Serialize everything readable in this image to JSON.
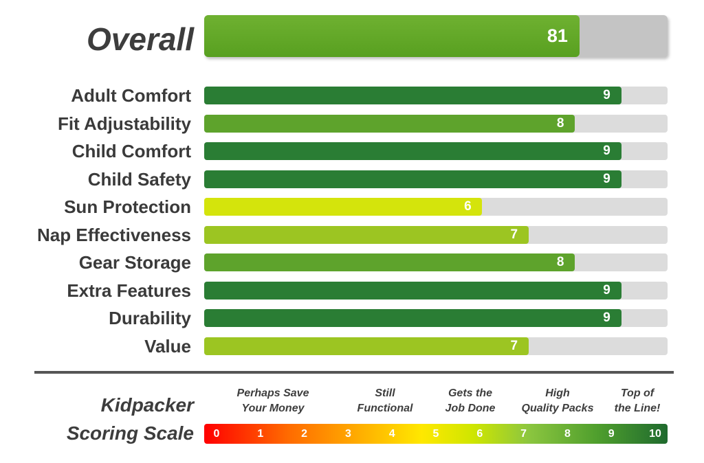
{
  "overall": {
    "label": "Overall",
    "value": 81,
    "max": 100
  },
  "chart_data": {
    "type": "bar",
    "orientation": "horizontal",
    "categories": [
      "Adult Comfort",
      "Fit Adjustability",
      "Child Comfort",
      "Child Safety",
      "Sun Protection",
      "Nap Effectiveness",
      "Gear Storage",
      "Extra Features",
      "Durability",
      "Value"
    ],
    "values": [
      9,
      8,
      9,
      9,
      6,
      7,
      8,
      9,
      9,
      7
    ],
    "xlim": [
      0,
      10
    ],
    "colors": {
      "9": "#2a7d34",
      "8": "#5ea32c",
      "7": "#9cc522",
      "6": "#d4e40c"
    }
  },
  "scale": {
    "title_line1": "Kidpacker",
    "title_line2": "Scoring Scale",
    "ticks": [
      "0",
      "1",
      "2",
      "3",
      "4",
      "5",
      "6",
      "7",
      "8",
      "9",
      "10"
    ],
    "descriptors": [
      {
        "line1": "Perhaps Save",
        "line2": "Your Money"
      },
      {
        "line1": "Still",
        "line2": "Functional"
      },
      {
        "line1": "Gets the",
        "line2": "Job Done"
      },
      {
        "line1": "High",
        "line2": "Quality Packs"
      },
      {
        "line1": "Top of",
        "line2": "the Line!"
      }
    ]
  }
}
